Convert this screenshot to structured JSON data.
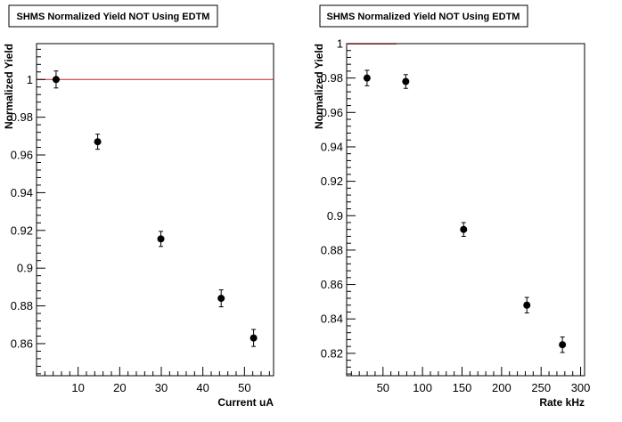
{
  "chart_data": [
    {
      "type": "scatter",
      "title": "SHMS Normalized Yield NOT Using EDTM",
      "xlabel": "Current uA",
      "ylabel": "Normalized Yield",
      "xlim": [
        0,
        57
      ],
      "ylim": [
        0.843,
        1.019
      ],
      "xticks": [
        10,
        20,
        30,
        40,
        50
      ],
      "yticks": [
        0.86,
        0.88,
        0.9,
        0.92,
        0.94,
        0.96,
        0.98,
        1
      ],
      "ytick_labels": [
        "0.86",
        "0.88",
        "0.9",
        "0.92",
        "0.94",
        "0.96",
        "0.98",
        "1"
      ],
      "reference_line": {
        "y": 1,
        "x_from": 0,
        "x_to": 57,
        "color": "#cc2222"
      },
      "points": [
        {
          "x": 4.7,
          "y": 1.0,
          "err": 0.0045
        },
        {
          "x": 14.7,
          "y": 0.967,
          "err": 0.004
        },
        {
          "x": 29.9,
          "y": 0.9155,
          "err": 0.004
        },
        {
          "x": 44.4,
          "y": 0.884,
          "err": 0.0045
        },
        {
          "x": 52.2,
          "y": 0.863,
          "err": 0.0045
        }
      ],
      "grid": false,
      "marker_color": "#000000"
    },
    {
      "type": "scatter",
      "title": "SHMS Normalized Yield NOT Using EDTM",
      "xlabel": "Rate kHz",
      "ylabel": "Normalized Yield",
      "xlim": [
        4,
        305
      ],
      "ylim": [
        0.807,
        1.0
      ],
      "xticks": [
        50,
        100,
        150,
        200,
        250,
        300
      ],
      "yticks": [
        0.82,
        0.84,
        0.86,
        0.88,
        0.9,
        0.92,
        0.94,
        0.96,
        0.98,
        1
      ],
      "ytick_labels": [
        "0.82",
        "0.84",
        "0.86",
        "0.88",
        "0.9",
        "0.92",
        "0.94",
        "0.96",
        "0.98",
        "1"
      ],
      "reference_line": {
        "y": 1,
        "x_from": 4,
        "x_to": 67,
        "color": "#8b1a1a"
      },
      "points": [
        {
          "x": 29.8,
          "y": 0.98,
          "err": 0.0045
        },
        {
          "x": 78.8,
          "y": 0.978,
          "err": 0.004
        },
        {
          "x": 152,
          "y": 0.892,
          "err": 0.004
        },
        {
          "x": 232,
          "y": 0.848,
          "err": 0.0045
        },
        {
          "x": 277,
          "y": 0.825,
          "err": 0.0045
        }
      ],
      "grid": false,
      "marker_color": "#000000"
    }
  ]
}
